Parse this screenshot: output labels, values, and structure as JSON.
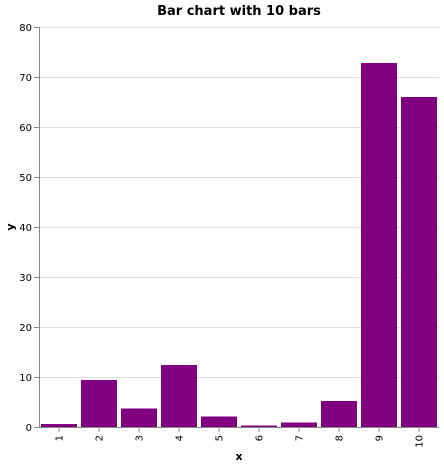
{
  "chart_data": {
    "type": "bar",
    "title": "Bar chart with 10 bars",
    "xlabel": "x",
    "ylabel": "y",
    "categories": [
      "1",
      "2",
      "3",
      "4",
      "5",
      "6",
      "7",
      "8",
      "9",
      "10"
    ],
    "values": [
      0.6,
      9.4,
      3.7,
      12.4,
      2.1,
      0.3,
      0.9,
      5.2,
      72.8,
      66.0
    ],
    "ylim": [
      0,
      80
    ],
    "yticks": [
      "0",
      "10",
      "20",
      "30",
      "40",
      "50",
      "60",
      "70",
      "80"
    ],
    "grid": true,
    "legend": "none",
    "colors": {
      "bar": "#800080",
      "grid": "#dddddd",
      "axis": "#888888"
    }
  }
}
